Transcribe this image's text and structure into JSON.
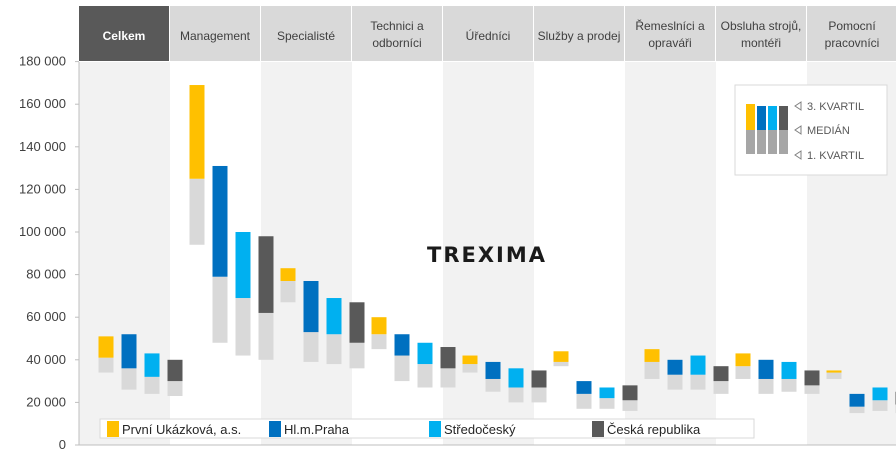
{
  "watermark": "TREXIMA",
  "categories": [
    {
      "label": [
        "Celkem"
      ],
      "active": true
    },
    {
      "label": [
        "Management"
      ],
      "active": false
    },
    {
      "label": [
        "Specialisté"
      ],
      "active": false
    },
    {
      "label": [
        "Technici a",
        "odborníci"
      ],
      "active": false
    },
    {
      "label": [
        "Úředníci"
      ],
      "active": false
    },
    {
      "label": [
        "Služby a prodej"
      ],
      "active": false
    },
    {
      "label": [
        "Řemeslníci a",
        "opraváři"
      ],
      "active": false
    },
    {
      "label": [
        "Obsluha strojů,",
        "montéři"
      ],
      "active": false
    },
    {
      "label": [
        "Pomocní",
        "pracovníci"
      ],
      "active": false
    }
  ],
  "legend_box": {
    "q3": "3. KVARTIL",
    "median": "MEDIÁN",
    "q1": "1. KVARTIL"
  },
  "colors": {
    "series": [
      "#FFC000",
      "#0070C0",
      "#00B0F0",
      "#595959"
    ],
    "lower_box": "#D9D9D9",
    "active_tab": "#595959",
    "tab": "#D9D9D9",
    "band": "#F2F2F2"
  },
  "chart_data": {
    "type": "bar",
    "subtype": "floating-quartile-boxes",
    "y_ticks": [
      "0",
      "20 000",
      "40 000",
      "60 000",
      "80 000",
      "100 000",
      "120 000",
      "140 000",
      "160 000",
      "180 000"
    ],
    "ylim": [
      0,
      180000
    ],
    "legend_position": "bottom",
    "series": [
      {
        "name": "První Ukázková, a.s.",
        "q1": [
          34000,
          94000,
          67000,
          45000,
          34000,
          37000,
          31000,
          31000,
          31000
        ],
        "median": [
          41000,
          125000,
          77000,
          52000,
          38000,
          39000,
          39000,
          37000,
          34000
        ],
        "q3": [
          51000,
          169000,
          83000,
          60000,
          42000,
          44000,
          45000,
          43000,
          35000
        ]
      },
      {
        "name": "Hl.m.Praha",
        "q1": [
          26000,
          48000,
          39000,
          30000,
          25000,
          17000,
          26000,
          24000,
          15000
        ],
        "median": [
          36000,
          79000,
          53000,
          42000,
          31000,
          24000,
          33000,
          31000,
          18000
        ],
        "q3": [
          52000,
          131000,
          77000,
          52000,
          39000,
          30000,
          40000,
          40000,
          24000
        ]
      },
      {
        "name": "Středočeský",
        "q1": [
          24000,
          42000,
          38000,
          27000,
          20000,
          17000,
          26000,
          25000,
          16000
        ],
        "median": [
          32000,
          69000,
          52000,
          38000,
          27000,
          22000,
          33000,
          31000,
          21000
        ],
        "q3": [
          43000,
          100000,
          69000,
          48000,
          36000,
          27000,
          42000,
          39000,
          27000
        ]
      },
      {
        "name": "Česká republika",
        "q1": [
          23000,
          40000,
          36000,
          27000,
          20000,
          16000,
          24000,
          24000,
          15000
        ],
        "median": [
          30000,
          62000,
          48000,
          36000,
          27000,
          21000,
          30000,
          28000,
          19000
        ],
        "q3": [
          40000,
          98000,
          67000,
          46000,
          35000,
          28000,
          37000,
          35000,
          25000
        ]
      }
    ]
  }
}
